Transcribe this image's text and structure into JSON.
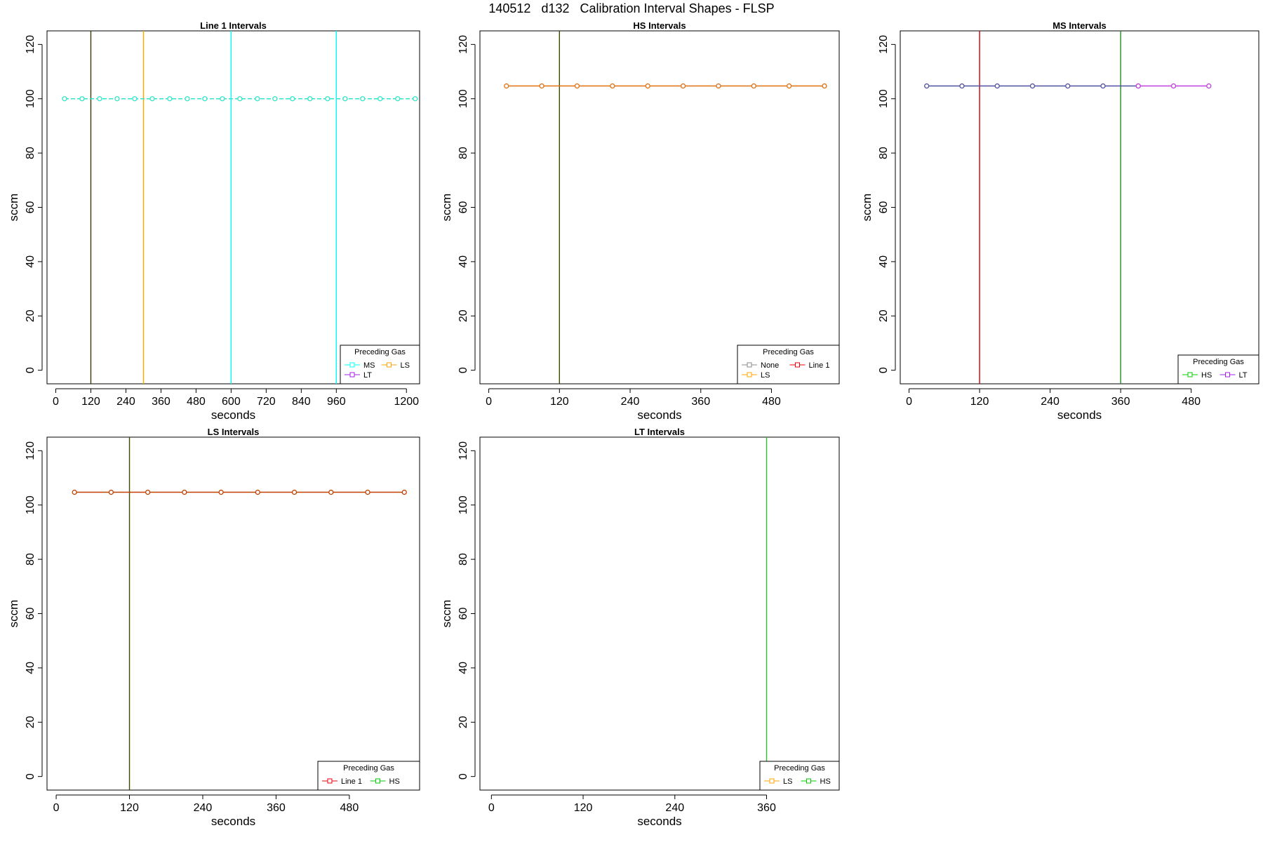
{
  "figure": {
    "title": "140512   d132   Calibration Interval Shapes - FLSP"
  },
  "chart_data": [
    {
      "type": "line",
      "title": "Line 1 Intervals",
      "xlabel": "seconds",
      "ylabel": "sccm",
      "xlim": [
        -30,
        1245
      ],
      "ylim": [
        -5,
        125
      ],
      "xticks": [
        0,
        120,
        240,
        360,
        480,
        600,
        720,
        840,
        960,
        1200
      ],
      "yticks": [
        0,
        20,
        40,
        60,
        80,
        100,
        120
      ],
      "grid": false,
      "legend": {
        "title": "Preceding Gas",
        "placement": "bottom-right",
        "rows": [
          [
            "MS",
            "LS"
          ],
          [
            "LT"
          ]
        ]
      },
      "legend_colors": {
        "MS": "#00ffff",
        "LS": "#ffa500",
        "LT": "#a020f0"
      },
      "vlines": [
        {
          "x": 120,
          "color": "#3a3a00"
        },
        {
          "x": 300,
          "color": "#ffa500"
        },
        {
          "x": 600,
          "color": "#00ffff"
        },
        {
          "x": 960,
          "color": "#00ffff"
        }
      ],
      "series": [
        {
          "color": "#2ee6c8",
          "dash": "6,3",
          "x": [
            30,
            90,
            150,
            210,
            270,
            330,
            390,
            450,
            510,
            570,
            630,
            690,
            750,
            810,
            870,
            930,
            990,
            1050,
            1110,
            1170,
            1230
          ],
          "y": [
            100,
            100,
            100,
            100,
            100,
            100,
            100,
            100,
            100,
            100,
            100,
            100,
            100,
            100,
            100,
            100,
            100,
            100,
            100,
            100,
            100
          ]
        }
      ]
    },
    {
      "type": "line",
      "title": "HS Intervals",
      "xlabel": "seconds",
      "ylabel": "sccm",
      "xlim": [
        -15,
        595
      ],
      "ylim": [
        -5,
        125
      ],
      "xticks": [
        0,
        120,
        240,
        360,
        480
      ],
      "yticks": [
        0,
        20,
        40,
        60,
        80,
        100,
        120
      ],
      "grid": false,
      "legend": {
        "title": "Preceding Gas",
        "placement": "bottom-right",
        "rows": [
          [
            "None",
            "Line 1"
          ],
          [
            "LS"
          ]
        ]
      },
      "legend_colors": {
        "None": "#888888",
        "Line 1": "#e8000b",
        "LS": "#ffa500"
      },
      "vlines": [
        {
          "x": 120,
          "color": "#3a4a00"
        }
      ],
      "series": [
        {
          "color": "#e07010",
          "dash": "",
          "x": [
            30,
            90,
            150,
            210,
            270,
            330,
            390,
            450,
            510,
            570
          ],
          "y": [
            104.7,
            104.7,
            104.7,
            104.7,
            104.7,
            104.7,
            104.7,
            104.7,
            104.7,
            104.7
          ]
        }
      ]
    },
    {
      "type": "line",
      "title": "MS Intervals",
      "xlabel": "seconds",
      "ylabel": "sccm",
      "xlim": [
        -15,
        595
      ],
      "ylim": [
        -5,
        125
      ],
      "xticks": [
        0,
        120,
        240,
        360,
        480
      ],
      "yticks": [
        0,
        20,
        40,
        60,
        80,
        100,
        120
      ],
      "grid": false,
      "legend": {
        "title": "Preceding Gas",
        "placement": "bottom-right",
        "rows": [
          [
            "HS",
            "LT"
          ]
        ]
      },
      "legend_colors": {
        "HS": "#00cc00",
        "LT": "#a020f0"
      },
      "vlines": [
        {
          "x": 120,
          "color": "#cc0000"
        },
        {
          "x": 360,
          "color": "#228b22"
        }
      ],
      "series": [
        {
          "color": "#5050a0",
          "dash": "",
          "x": [
            30,
            90,
            150,
            210,
            270,
            330,
            390
          ],
          "y": [
            104.7,
            104.7,
            104.7,
            104.7,
            104.7,
            104.7,
            104.7
          ]
        },
        {
          "color": "#c040e0",
          "dash": "",
          "x": [
            390,
            450,
            510
          ],
          "y": [
            104.7,
            104.7,
            104.7
          ]
        }
      ]
    },
    {
      "type": "line",
      "title": "LS Intervals",
      "xlabel": "seconds",
      "ylabel": "sccm",
      "xlim": [
        -15,
        595
      ],
      "ylim": [
        -5,
        125
      ],
      "xticks": [
        0,
        120,
        240,
        360,
        480
      ],
      "yticks": [
        0,
        20,
        40,
        60,
        80,
        100,
        120
      ],
      "grid": false,
      "legend": {
        "title": "Preceding Gas",
        "placement": "bottom-right",
        "rows": [
          [
            "Line 1",
            "HS"
          ]
        ]
      },
      "legend_colors": {
        "Line 1": "#e8000b",
        "HS": "#00cc00"
      },
      "vlines": [
        {
          "x": 120,
          "color": "#3a4a00"
        }
      ],
      "series": [
        {
          "color": "#c04000",
          "dash": "",
          "x": [
            30,
            90,
            150,
            210,
            270,
            330,
            390,
            450,
            510,
            570
          ],
          "y": [
            104.7,
            104.7,
            104.7,
            104.7,
            104.7,
            104.7,
            104.7,
            104.7,
            104.7,
            104.7
          ]
        }
      ]
    },
    {
      "type": "line",
      "title": "LT Intervals",
      "xlabel": "seconds",
      "ylabel": "sccm",
      "xlim": [
        -15,
        455
      ],
      "ylim": [
        -5,
        125
      ],
      "xticks": [
        0,
        120,
        240,
        360
      ],
      "yticks": [
        0,
        20,
        40,
        60,
        80,
        100,
        120
      ],
      "grid": false,
      "legend": {
        "title": "Preceding Gas",
        "placement": "bottom-right",
        "rows": [
          [
            "LS",
            "HS"
          ]
        ]
      },
      "legend_colors": {
        "LS": "#ffa500",
        "HS": "#00cc00"
      },
      "vlines": [
        {
          "x": 360,
          "color": "#33bb33"
        }
      ],
      "series": []
    }
  ]
}
